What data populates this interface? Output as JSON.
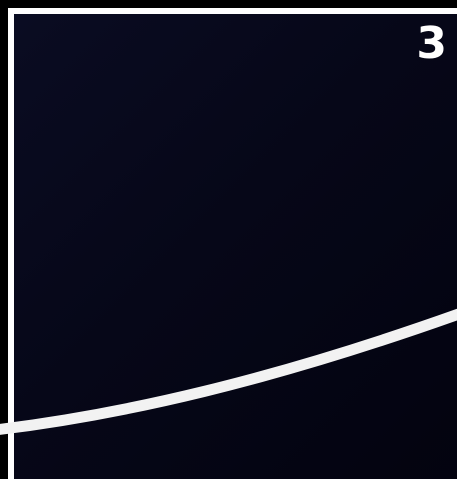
{
  "card": {
    "step_number": "3",
    "background_color": "#05061a",
    "border_color": "#ffffff",
    "curve_color": "#f2f2f2"
  },
  "icons": {
    "curve": "curve-line-icon"
  }
}
